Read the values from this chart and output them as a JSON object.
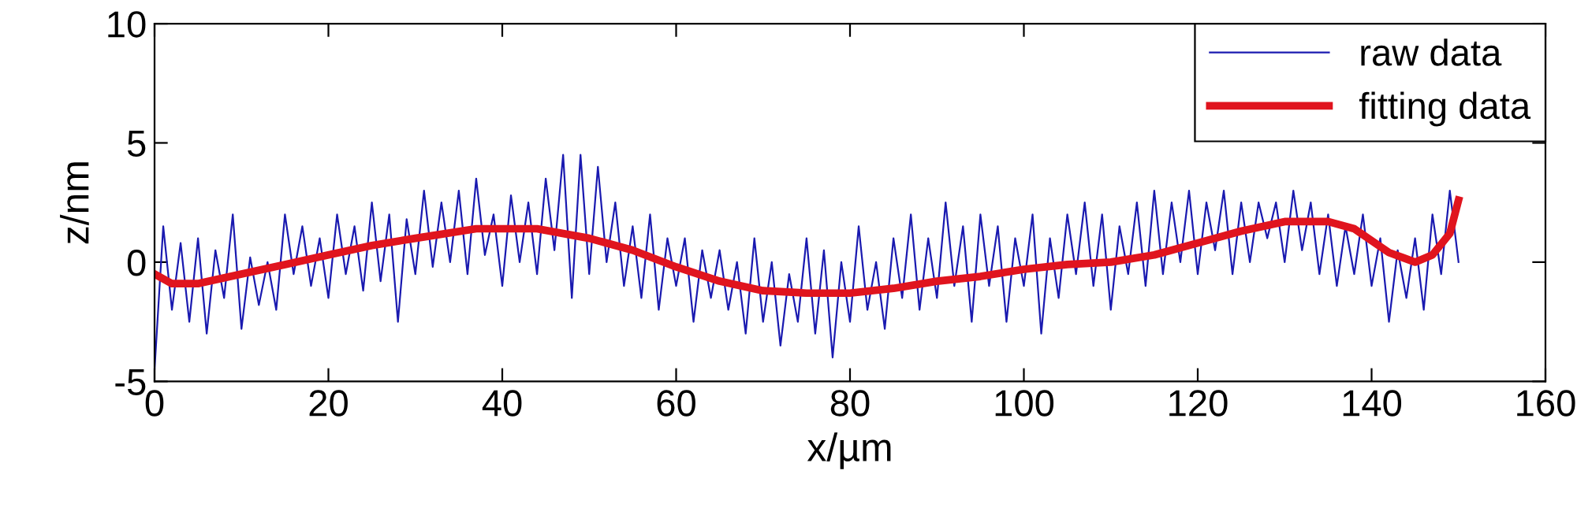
{
  "chart_data": {
    "type": "line",
    "xlabel": "x/µm",
    "ylabel": "z/nm",
    "xlim": [
      0,
      160
    ],
    "xticks": [
      0,
      20,
      40,
      60,
      80,
      100,
      120,
      140,
      160
    ],
    "ylim": [
      -5,
      10
    ],
    "yticks": [
      -5,
      0,
      5,
      10
    ],
    "grid": false,
    "legend": "top right",
    "series": [
      {
        "name": "raw data",
        "color": "#1a1ab0",
        "line_style": "solid",
        "x": [
          0,
          1,
          2,
          3,
          4,
          5,
          6,
          7,
          8,
          9,
          10,
          11,
          12,
          13,
          14,
          15,
          16,
          17,
          18,
          19,
          20,
          21,
          22,
          23,
          24,
          25,
          26,
          27,
          28,
          29,
          30,
          31,
          32,
          33,
          34,
          35,
          36,
          37,
          38,
          39,
          40,
          41,
          42,
          43,
          44,
          45,
          46,
          47,
          48,
          49,
          50,
          51,
          52,
          53,
          54,
          55,
          56,
          57,
          58,
          59,
          60,
          61,
          62,
          63,
          64,
          65,
          66,
          67,
          68,
          69,
          70,
          71,
          72,
          73,
          74,
          75,
          76,
          77,
          78,
          79,
          80,
          81,
          82,
          83,
          84,
          85,
          86,
          87,
          88,
          89,
          90,
          91,
          92,
          93,
          94,
          95,
          96,
          97,
          98,
          99,
          100,
          101,
          102,
          103,
          104,
          105,
          106,
          107,
          108,
          109,
          110,
          111,
          112,
          113,
          114,
          115,
          116,
          117,
          118,
          119,
          120,
          121,
          122,
          123,
          124,
          125,
          126,
          127,
          128,
          129,
          130,
          131,
          132,
          133,
          134,
          135,
          136,
          137,
          138,
          139,
          140,
          141,
          142,
          143,
          144,
          145,
          146,
          147,
          148,
          149,
          150
        ],
        "values": [
          -4.5,
          1.5,
          -2.0,
          0.8,
          -2.5,
          1.0,
          -3.0,
          0.5,
          -1.5,
          2.0,
          -2.8,
          0.2,
          -1.8,
          0.0,
          -2.0,
          2.0,
          -0.5,
          1.5,
          -1.0,
          1.0,
          -1.5,
          2.0,
          -0.5,
          1.5,
          -1.2,
          2.5,
          -0.8,
          2.0,
          -2.5,
          1.8,
          -0.5,
          3.0,
          -0.2,
          2.5,
          0.0,
          3.0,
          -0.5,
          3.5,
          0.3,
          2.0,
          -1.0,
          2.8,
          0.0,
          2.5,
          -0.5,
          3.5,
          0.5,
          4.5,
          -1.5,
          4.5,
          -0.5,
          4.0,
          0.0,
          2.5,
          -1.0,
          1.5,
          -1.5,
          2.0,
          -2.0,
          1.0,
          -1.0,
          1.0,
          -2.5,
          0.5,
          -1.5,
          0.5,
          -2.0,
          0.0,
          -3.0,
          1.0,
          -2.5,
          0.0,
          -3.5,
          -0.5,
          -2.5,
          1.0,
          -3.0,
          0.5,
          -4.0,
          0.0,
          -2.5,
          1.5,
          -2.0,
          0.0,
          -2.8,
          1.0,
          -1.5,
          2.0,
          -2.0,
          1.0,
          -1.5,
          2.5,
          -1.0,
          1.5,
          -2.5,
          2.0,
          -1.0,
          1.5,
          -2.5,
          1.0,
          -1.0,
          2.0,
          -3.0,
          1.0,
          -1.5,
          2.0,
          -0.5,
          2.5,
          -1.0,
          2.0,
          -2.0,
          1.5,
          -0.5,
          2.5,
          -1.0,
          3.0,
          -0.5,
          2.5,
          0.0,
          3.0,
          -0.5,
          2.5,
          0.5,
          3.0,
          -0.5,
          2.5,
          0.0,
          2.5,
          1.0,
          2.5,
          0.0,
          3.0,
          0.5,
          2.5,
          -0.5,
          2.0,
          -1.0,
          1.5,
          -0.5,
          2.0,
          -1.0,
          1.0,
          -2.5,
          0.5,
          -1.5,
          1.0,
          -2.0,
          2.0,
          -0.5,
          3.0,
          0.0
        ]
      },
      {
        "name": "fitting data",
        "color": "#e0141e",
        "line_style": "solid",
        "x": [
          0,
          2,
          5,
          10,
          15,
          20,
          25,
          30,
          37,
          44,
          50,
          55,
          60,
          65,
          70,
          75,
          80,
          85,
          90,
          95,
          100,
          105,
          110,
          115,
          120,
          125,
          130,
          135,
          138,
          142,
          145,
          147,
          149,
          150
        ],
        "values": [
          -0.5,
          -0.9,
          -0.9,
          -0.5,
          -0.1,
          0.3,
          0.7,
          1.0,
          1.4,
          1.4,
          1.0,
          0.5,
          -0.2,
          -0.8,
          -1.2,
          -1.3,
          -1.3,
          -1.1,
          -0.8,
          -0.6,
          -0.3,
          -0.1,
          0.0,
          0.3,
          0.8,
          1.3,
          1.7,
          1.7,
          1.4,
          0.4,
          0.0,
          0.3,
          1.2,
          2.6
        ]
      }
    ]
  }
}
